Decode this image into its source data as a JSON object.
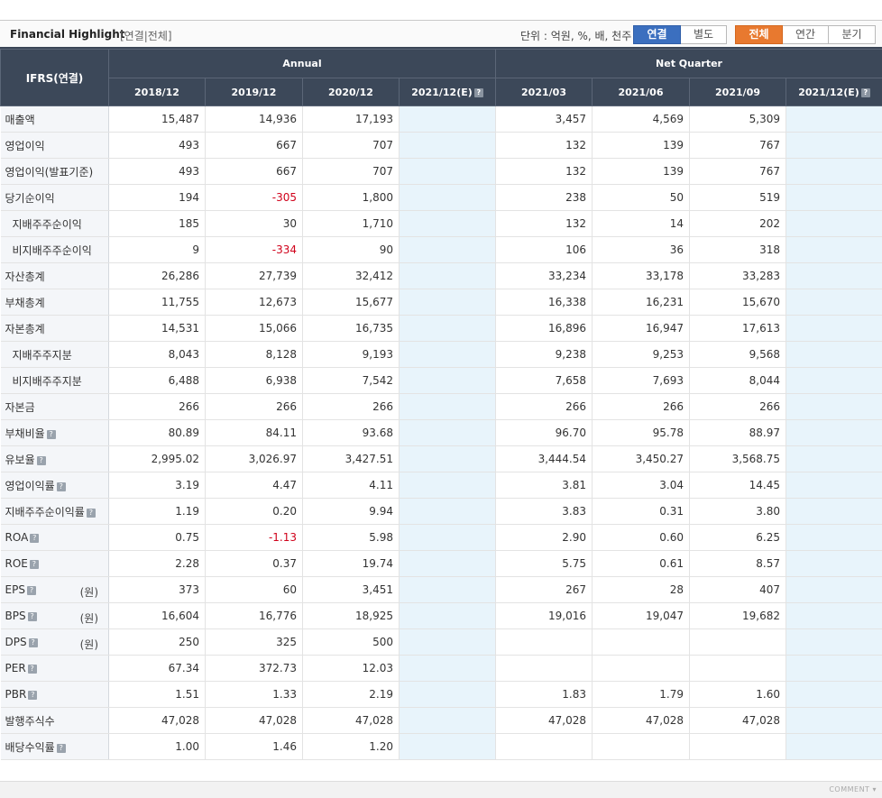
{
  "header": {
    "title": "Financial Highlight",
    "subtitle": "[연결|전체]",
    "unit": "단위 : 억원, %, 배, 천주",
    "consolidation_buttons": [
      "연결",
      "별도"
    ],
    "period_buttons": [
      "전체",
      "연간",
      "분기"
    ]
  },
  "table": {
    "corner_label": "IFRS(연결)",
    "annual_label": "Annual",
    "quarter_label": "Net Quarter",
    "annual_periods": [
      "2018/12",
      "2019/12",
      "2020/12",
      "2021/12(E)"
    ],
    "quarter_periods": [
      "2021/03",
      "2021/06",
      "2021/09",
      "2021/12(E)"
    ],
    "won_label": "(원)",
    "rows": [
      {
        "label": "매출액",
        "values": [
          "15,487",
          "14,936",
          "17,193",
          "",
          "3,457",
          "4,569",
          "5,309",
          ""
        ]
      },
      {
        "label": "영업이익",
        "values": [
          "493",
          "667",
          "707",
          "",
          "132",
          "139",
          "767",
          ""
        ]
      },
      {
        "label": "영업이익(발표기준)",
        "values": [
          "493",
          "667",
          "707",
          "",
          "132",
          "139",
          "767",
          ""
        ]
      },
      {
        "label": "당기순이익",
        "values": [
          "194",
          "-305",
          "1,800",
          "",
          "238",
          "50",
          "519",
          ""
        ]
      },
      {
        "label": "지배주주순이익",
        "values": [
          "185",
          "30",
          "1,710",
          "",
          "132",
          "14",
          "202",
          ""
        ]
      },
      {
        "label": "비지배주주순이익",
        "values": [
          "9",
          "-334",
          "90",
          "",
          "106",
          "36",
          "318",
          ""
        ]
      },
      {
        "label": "자산총계",
        "values": [
          "26,286",
          "27,739",
          "32,412",
          "",
          "33,234",
          "33,178",
          "33,283",
          ""
        ]
      },
      {
        "label": "부채총계",
        "values": [
          "11,755",
          "12,673",
          "15,677",
          "",
          "16,338",
          "16,231",
          "15,670",
          ""
        ]
      },
      {
        "label": "자본총계",
        "values": [
          "14,531",
          "15,066",
          "16,735",
          "",
          "16,896",
          "16,947",
          "17,613",
          ""
        ]
      },
      {
        "label": "지배주주지분",
        "values": [
          "8,043",
          "8,128",
          "9,193",
          "",
          "9,238",
          "9,253",
          "9,568",
          ""
        ]
      },
      {
        "label": "비지배주주지분",
        "values": [
          "6,488",
          "6,938",
          "7,542",
          "",
          "7,658",
          "7,693",
          "8,044",
          ""
        ]
      },
      {
        "label": "자본금",
        "values": [
          "266",
          "266",
          "266",
          "",
          "266",
          "266",
          "266",
          ""
        ]
      },
      {
        "label": "부채비율",
        "values": [
          "80.89",
          "84.11",
          "93.68",
          "",
          "96.70",
          "95.78",
          "88.97",
          ""
        ]
      },
      {
        "label": "유보율",
        "values": [
          "2,995.02",
          "3,026.97",
          "3,427.51",
          "",
          "3,444.54",
          "3,450.27",
          "3,568.75",
          ""
        ]
      },
      {
        "label": "영업이익률",
        "values": [
          "3.19",
          "4.47",
          "4.11",
          "",
          "3.81",
          "3.04",
          "14.45",
          ""
        ]
      },
      {
        "label": "지배주주순이익률",
        "values": [
          "1.19",
          "0.20",
          "9.94",
          "",
          "3.83",
          "0.31",
          "3.80",
          ""
        ]
      },
      {
        "label": "ROA",
        "values": [
          "0.75",
          "-1.13",
          "5.98",
          "",
          "2.90",
          "0.60",
          "6.25",
          ""
        ]
      },
      {
        "label": "ROE",
        "values": [
          "2.28",
          "0.37",
          "19.74",
          "",
          "5.75",
          "0.61",
          "8.57",
          ""
        ]
      },
      {
        "label": "EPS",
        "values": [
          "373",
          "60",
          "3,451",
          "",
          "267",
          "28",
          "407",
          ""
        ]
      },
      {
        "label": "BPS",
        "values": [
          "16,604",
          "16,776",
          "18,925",
          "",
          "19,016",
          "19,047",
          "19,682",
          ""
        ]
      },
      {
        "label": "DPS",
        "values": [
          "250",
          "325",
          "500",
          "",
          "",
          "",
          "",
          ""
        ]
      },
      {
        "label": "PER",
        "values": [
          "67.34",
          "372.73",
          "12.03",
          "",
          "",
          "",
          "",
          ""
        ]
      },
      {
        "label": "PBR",
        "values": [
          "1.51",
          "1.33",
          "2.19",
          "",
          "1.83",
          "1.79",
          "1.60",
          ""
        ]
      },
      {
        "label": "발행주식수",
        "values": [
          "47,028",
          "47,028",
          "47,028",
          "",
          "47,028",
          "47,028",
          "47,028",
          ""
        ]
      },
      {
        "label": "배당수익률",
        "values": [
          "1.00",
          "1.46",
          "1.20",
          "",
          "",
          "",
          "",
          ""
        ]
      }
    ]
  },
  "footer": {
    "comment_label": "COMMENT ▾"
  }
}
